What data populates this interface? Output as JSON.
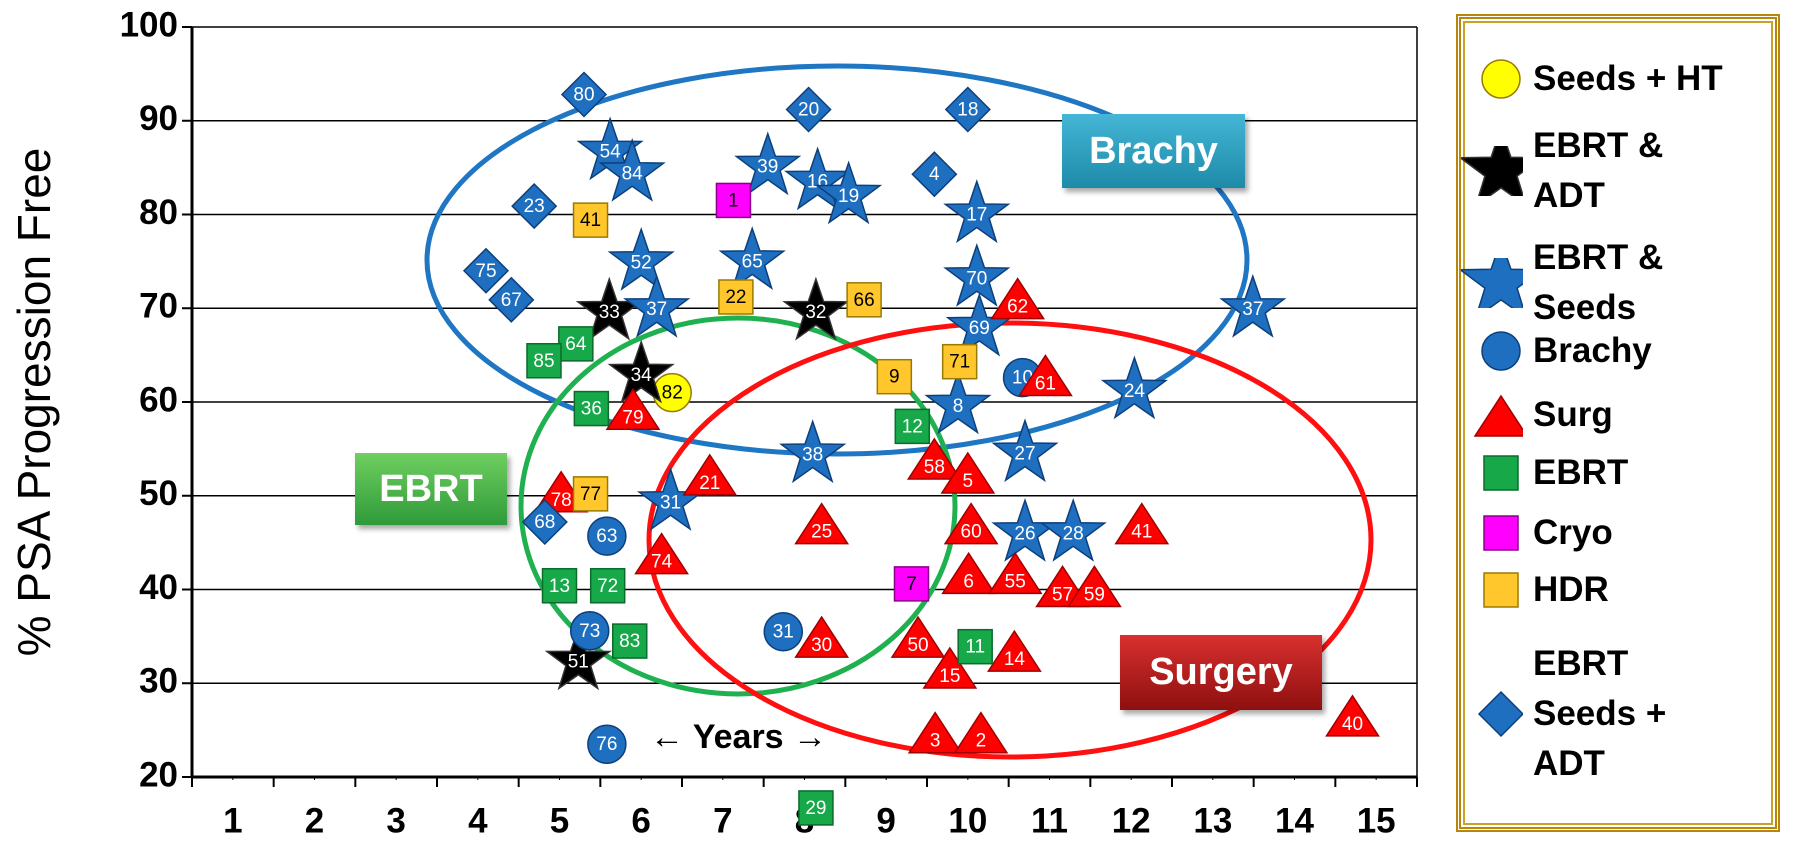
{
  "chart_data": {
    "type": "scatter",
    "y_label": "% PSA Progression Free",
    "xlim": [
      0.5,
      15.5
    ],
    "ylim": [
      20,
      100
    ],
    "xticks": [
      1,
      2,
      3,
      4,
      5,
      6,
      7,
      8,
      9,
      10,
      11,
      12,
      13,
      14,
      15
    ],
    "yticks": [
      20,
      30,
      40,
      50,
      60,
      70,
      80,
      90,
      100
    ],
    "grid": true,
    "legend_position": "right",
    "annotations": [
      "Brachy",
      "EBRT",
      "Surgery",
      "← Years →"
    ],
    "series": [
      {
        "name": "Seeds + HT",
        "marker": "circle",
        "color": "#ffff00",
        "label_color": "#000000",
        "x": [
          6.38
        ],
        "values": [
          61.0
        ],
        "labels": [
          82
        ]
      },
      {
        "name": "EBRT & ADT",
        "marker": "star",
        "color": "#000000",
        "label_color": "#ffffff",
        "x": [
          5.61,
          8.14,
          6.0,
          5.23
        ],
        "values": [
          69.6,
          69.6,
          62.9,
          32.3
        ],
        "labels": [
          33,
          32,
          34,
          51
        ]
      },
      {
        "name": "EBRT & Seeds",
        "marker": "star",
        "color": "#1f6fc0",
        "label_color": "#ffffff",
        "x": [
          5.62,
          5.89,
          7.55,
          8.16,
          8.54,
          10.11,
          6.0,
          7.36,
          10.11,
          6.19,
          10.14,
          13.49,
          12.04,
          9.88,
          8.1,
          10.7,
          6.36,
          10.7,
          11.29
        ],
        "values": [
          86.7,
          84.4,
          85.1,
          83.5,
          82.0,
          80.0,
          74.9,
          75.0,
          73.2,
          69.9,
          67.9,
          69.9,
          61.2,
          59.6,
          54.4,
          54.5,
          49.3,
          46.0,
          46.0
        ],
        "labels": [
          54,
          84,
          39,
          16,
          19,
          17,
          52,
          65,
          70,
          37,
          69,
          37,
          24,
          8,
          38,
          27,
          31,
          26,
          28
        ]
      },
      {
        "name": "Brachy",
        "marker": "circle",
        "color": "#1f6fc0",
        "label_color": "#ffffff",
        "x": [
          10.67,
          5.58,
          5.37,
          7.74,
          5.58
        ],
        "values": [
          62.6,
          45.7,
          35.6,
          35.5,
          23.5
        ],
        "labels": [
          10,
          63,
          73,
          31,
          76
        ]
      },
      {
        "name": "Surg",
        "marker": "triangle",
        "color": "#ff0000",
        "label_color": "#ffffff",
        "x": [
          10.61,
          10.95,
          5.9,
          6.84,
          9.59,
          10.0,
          5.02,
          8.21,
          10.04,
          12.13,
          6.25,
          10.01,
          10.58,
          11.16,
          11.55,
          8.21,
          9.39,
          9.78,
          10.57,
          9.6,
          10.16,
          14.71
        ],
        "values": [
          70.6,
          62.4,
          58.8,
          51.8,
          53.5,
          52.0,
          50.0,
          46.6,
          46.6,
          46.6,
          43.4,
          41.3,
          41.3,
          39.9,
          39.9,
          34.5,
          34.5,
          31.2,
          33.0,
          24.3,
          24.3,
          26.1
        ],
        "labels": [
          62,
          61,
          79,
          21,
          58,
          5,
          78,
          25,
          60,
          41,
          74,
          6,
          55,
          57,
          59,
          30,
          50,
          15,
          14,
          3,
          2,
          40
        ]
      },
      {
        "name": "EBRT",
        "marker": "square",
        "color": "#17a84a",
        "label_color": "#ffffff",
        "x": [
          5.2,
          4.81,
          5.39,
          9.32,
          5.0,
          5.59,
          5.86,
          10.09,
          8.14
        ],
        "values": [
          66.2,
          64.4,
          59.3,
          57.4,
          40.4,
          40.4,
          34.5,
          33.9,
          16.7
        ],
        "labels": [
          64,
          85,
          36,
          12,
          13,
          72,
          83,
          11,
          29
        ]
      },
      {
        "name": "Cryo",
        "marker": "square",
        "color": "#ff00ff",
        "label_color": "#000000",
        "x": [
          7.13,
          9.31
        ],
        "values": [
          81.5,
          40.6
        ],
        "labels": [
          1,
          7
        ]
      },
      {
        "name": "HDR",
        "marker": "square",
        "color": "#ffc72c",
        "label_color": "#000000",
        "x": [
          5.38,
          7.16,
          8.73,
          9.1,
          9.9,
          5.38
        ],
        "values": [
          79.4,
          71.2,
          70.9,
          62.7,
          64.3,
          50.2
        ],
        "labels": [
          41,
          22,
          66,
          9,
          71,
          77
        ]
      },
      {
        "name": "EBRT Seeds + ADT",
        "marker": "diamond",
        "color": "#1f6fc0",
        "label_color": "#ffffff",
        "x": [
          5.3,
          8.05,
          10.0,
          9.59,
          4.69,
          4.1,
          4.41,
          4.82
        ],
        "values": [
          92.8,
          91.2,
          91.2,
          84.3,
          80.9,
          74.0,
          70.9,
          47.2
        ],
        "labels": [
          80,
          20,
          18,
          4,
          23,
          75,
          67,
          68
        ]
      }
    ]
  }
}
